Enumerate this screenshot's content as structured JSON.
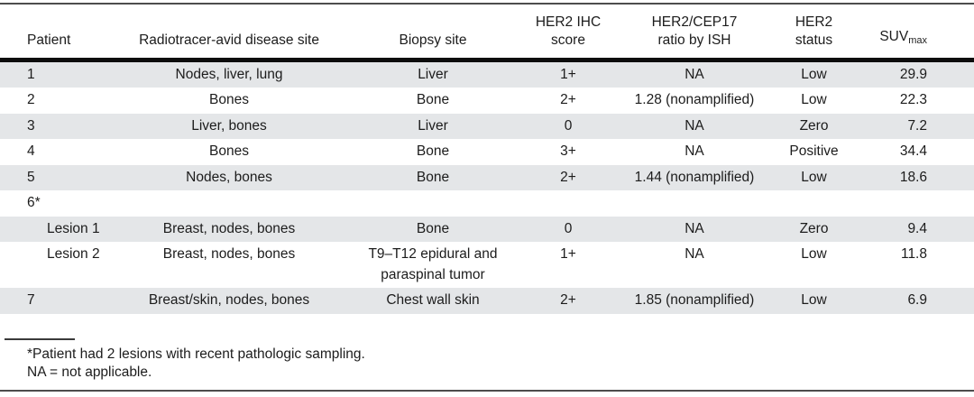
{
  "table": {
    "headers": {
      "patient": "Patient",
      "disease_site": "Radiotracer-avid disease site",
      "biopsy_site": "Biopsy site",
      "ihc": {
        "line1": "HER2 IHC",
        "line2": "score"
      },
      "ish": {
        "line1": "HER2/CEP17",
        "line2": "ratio by ISH"
      },
      "status": {
        "line1": "HER2",
        "line2": "status"
      },
      "suv": {
        "base": "SUV",
        "sub": "max"
      }
    },
    "rows": [
      {
        "patient": "1",
        "disease_site": "Nodes, liver, lung",
        "biopsy_site": "Liver",
        "ihc": "1+",
        "ish": "NA",
        "status": "Low",
        "suv": "29.9"
      },
      {
        "patient": "2",
        "disease_site": "Bones",
        "biopsy_site": "Bone",
        "ihc": "2+",
        "ish": "1.28 (nonamplified)",
        "status": "Low",
        "suv": "22.3"
      },
      {
        "patient": "3",
        "disease_site": "Liver, bones",
        "biopsy_site": "Liver",
        "ihc": "0",
        "ish": "NA",
        "status": "Zero",
        "suv": "7.2"
      },
      {
        "patient": "4",
        "disease_site": "Bones",
        "biopsy_site": "Bone",
        "ihc": "3+",
        "ish": "NA",
        "status": "Positive",
        "suv": "34.4"
      },
      {
        "patient": "5",
        "disease_site": "Nodes, bones",
        "biopsy_site": "Bone",
        "ihc": "2+",
        "ish": "1.44 (nonamplified)",
        "status": "Low",
        "suv": "18.6"
      },
      {
        "patient": "6*",
        "disease_site": "",
        "biopsy_site": "",
        "ihc": "",
        "ish": "",
        "status": "",
        "suv": ""
      },
      {
        "patient": "Lesion 1",
        "disease_site": "Breast, nodes, bones",
        "biopsy_site": "Bone",
        "ihc": "0",
        "ish": "NA",
        "status": "Zero",
        "suv": "9.4"
      },
      {
        "patient": "Lesion 2",
        "disease_site": "Breast, nodes, bones",
        "biopsy_site": "T9–T12 epidural and paraspinal tumor",
        "ihc": "1+",
        "ish": "NA",
        "status": "Low",
        "suv": "11.8"
      },
      {
        "patient": "7",
        "disease_site": "Breast/skin, nodes, bones",
        "biopsy_site": "Chest wall skin",
        "ihc": "2+",
        "ish": "1.85 (nonamplified)",
        "status": "Low",
        "suv": "6.9"
      }
    ]
  },
  "footnotes": {
    "line1": "*Patient had 2 lesions with recent pathologic sampling.",
    "line2": "NA = not applicable."
  },
  "colors": {
    "row_shade": "#e4e6e8",
    "header_rule": "#0c0c0c",
    "outer_rule": "#4d4d4d",
    "text": "#1c1c1c"
  }
}
